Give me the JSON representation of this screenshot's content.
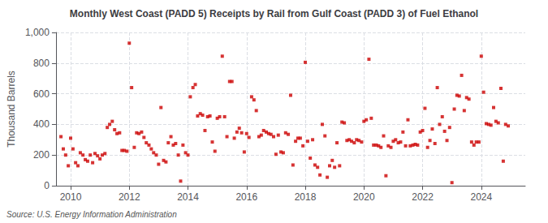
{
  "chart_data": {
    "type": "scatter",
    "title": "Monthly West Coast (PADD 5) Receipts by Rail from Gulf Coast (PADD 3) of Fuel Ethanol",
    "ylabel": "Thousand Barrels",
    "source": "Source: U.S. Energy Information Administration",
    "color": "#cc0000",
    "marker": "square",
    "grid": true,
    "xlim": [
      2009.5,
      2025.5
    ],
    "xticks": [
      2010,
      2012,
      2014,
      2016,
      2018,
      2020,
      2022,
      2024
    ],
    "ylim": [
      0,
      1000
    ],
    "yticks": [
      0,
      200,
      400,
      600,
      800,
      {
        "value": 1000,
        "label": "1,000"
      }
    ],
    "x": [
      2009.67,
      2009.75,
      2009.83,
      2009.92,
      2010.0,
      2010.08,
      2010.17,
      2010.25,
      2010.33,
      2010.42,
      2010.5,
      2010.58,
      2010.67,
      2010.75,
      2010.83,
      2010.92,
      2011.0,
      2011.08,
      2011.17,
      2011.25,
      2011.33,
      2011.42,
      2011.5,
      2011.58,
      2011.67,
      2011.75,
      2011.83,
      2011.92,
      2012.0,
      2012.08,
      2012.17,
      2012.25,
      2012.33,
      2012.42,
      2012.5,
      2012.58,
      2012.67,
      2012.75,
      2012.83,
      2012.92,
      2013.0,
      2013.08,
      2013.17,
      2013.25,
      2013.33,
      2013.42,
      2013.5,
      2013.58,
      2013.67,
      2013.75,
      2013.83,
      2013.92,
      2014.0,
      2014.08,
      2014.17,
      2014.25,
      2014.33,
      2014.42,
      2014.5,
      2014.58,
      2014.67,
      2014.75,
      2014.83,
      2014.92,
      2015.0,
      2015.08,
      2015.17,
      2015.25,
      2015.33,
      2015.42,
      2015.5,
      2015.58,
      2015.67,
      2015.75,
      2015.83,
      2015.92,
      2016.0,
      2016.08,
      2016.17,
      2016.25,
      2016.33,
      2016.42,
      2016.5,
      2016.58,
      2016.67,
      2016.75,
      2016.83,
      2016.92,
      2017.0,
      2017.08,
      2017.17,
      2017.25,
      2017.33,
      2017.42,
      2017.5,
      2017.58,
      2017.67,
      2017.75,
      2017.83,
      2017.92,
      2018.0,
      2018.08,
      2018.17,
      2018.25,
      2018.33,
      2018.42,
      2018.5,
      2018.58,
      2018.67,
      2018.75,
      2018.83,
      2018.92,
      2019.0,
      2019.08,
      2019.17,
      2019.25,
      2019.33,
      2019.42,
      2019.5,
      2019.58,
      2019.67,
      2019.75,
      2019.83,
      2019.92,
      2020.0,
      2020.08,
      2020.17,
      2020.25,
      2020.33,
      2020.42,
      2020.5,
      2020.58,
      2020.67,
      2020.75,
      2020.83,
      2020.92,
      2021.0,
      2021.08,
      2021.17,
      2021.25,
      2021.33,
      2021.42,
      2021.5,
      2021.58,
      2021.67,
      2021.75,
      2021.83,
      2021.92,
      2022.0,
      2022.08,
      2022.17,
      2022.25,
      2022.33,
      2022.42,
      2022.5,
      2022.58,
      2022.67,
      2022.75,
      2022.83,
      2022.92,
      2023.0,
      2023.08,
      2023.17,
      2023.25,
      2023.33,
      2023.42,
      2023.5,
      2023.58,
      2023.67,
      2023.75,
      2023.83,
      2023.92,
      2024.0,
      2024.08,
      2024.17,
      2024.25,
      2024.33,
      2024.42,
      2024.5,
      2024.58,
      2024.67,
      2024.75,
      2024.83,
      2024.92
    ],
    "values": [
      320,
      240,
      200,
      130,
      310,
      240,
      150,
      130,
      215,
      200,
      170,
      160,
      200,
      150,
      210,
      195,
      175,
      200,
      210,
      380,
      400,
      420,
      365,
      340,
      345,
      230,
      230,
      225,
      930,
      640,
      250,
      345,
      340,
      350,
      315,
      280,
      265,
      240,
      215,
      200,
      140,
      510,
      165,
      155,
      280,
      320,
      265,
      275,
      200,
      30,
      265,
      215,
      200,
      580,
      640,
      660,
      455,
      470,
      460,
      360,
      450,
      455,
      285,
      225,
      440,
      450,
      845,
      450,
      320,
      680,
      680,
      310,
      350,
      375,
      345,
      220,
      340,
      315,
      580,
      560,
      490,
      320,
      330,
      360,
      350,
      340,
      335,
      320,
      205,
      330,
      220,
      215,
      345,
      335,
      590,
      135,
      290,
      310,
      310,
      260,
      805,
      290,
      180,
      300,
      135,
      120,
      70,
      400,
      325,
      55,
      130,
      165,
      120,
      280,
      130,
      415,
      410,
      295,
      300,
      290,
      280,
      300,
      295,
      285,
      420,
      430,
      825,
      440,
      265,
      265,
      260,
      250,
      325,
      65,
      260,
      250,
      290,
      300,
      280,
      285,
      350,
      260,
      430,
      260,
      265,
      270,
      265,
      350,
      360,
      505,
      250,
      295,
      370,
      275,
      640,
      400,
      450,
      355,
      295,
      380,
      20,
      500,
      590,
      585,
      720,
      490,
      575,
      565,
      285,
      265,
      285,
      285,
      845,
      610,
      405,
      400,
      395,
      510,
      420,
      410,
      635,
      160,
      400,
      390
    ]
  }
}
